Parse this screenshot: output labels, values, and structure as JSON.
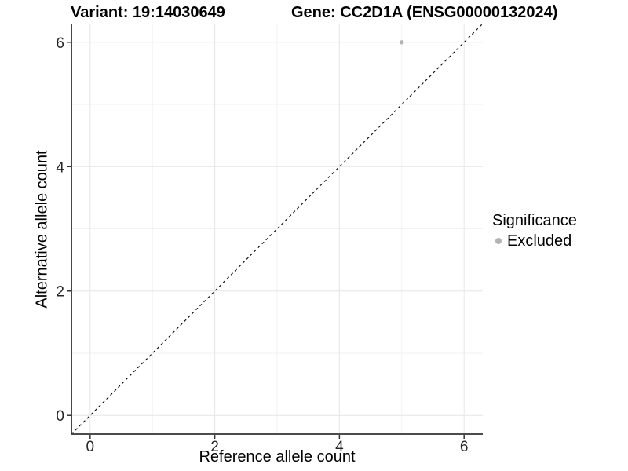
{
  "chart_data": {
    "type": "scatter",
    "title_left": "Variant: 19:14030649",
    "title_right": "Gene: CC2D1A (ENSG00000132024)",
    "xlabel": "Reference allele count",
    "ylabel": "Alternative allele count",
    "xlim": [
      -0.3,
      6.3
    ],
    "ylim": [
      -0.3,
      6.3
    ],
    "x_ticks": [
      0,
      2,
      4,
      6
    ],
    "y_ticks": [
      0,
      2,
      4,
      6
    ],
    "x_minor": [
      1,
      3,
      5
    ],
    "y_minor": [
      1,
      3,
      5
    ],
    "grid": true,
    "points": [
      {
        "x": 5,
        "y": 6,
        "significance": "Excluded"
      }
    ],
    "abline": {
      "slope": 1,
      "intercept": 0,
      "style": "dashed"
    },
    "legend": {
      "title": "Significance",
      "position": "right",
      "items": [
        {
          "label": "Excluded",
          "color": "#b4b4b4"
        }
      ]
    },
    "colors": {
      "point": "#b4b4b4",
      "grid_major": "#e6e6e6",
      "grid_minor": "#f2f2f2",
      "axis": "#333333",
      "abline": "#000000",
      "tick_label": "#262626",
      "text": "#000000"
    }
  }
}
